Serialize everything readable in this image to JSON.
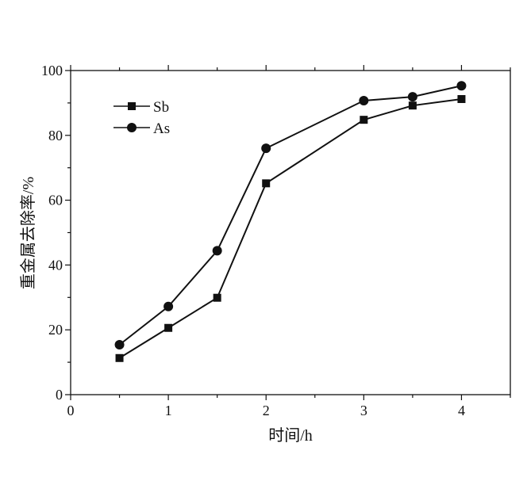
{
  "chart_data": {
    "type": "line",
    "title": "",
    "xlabel": "时间/h",
    "ylabel": "重金属去除率/%",
    "xlim": [
      0,
      4.5
    ],
    "ylim": [
      0,
      100
    ],
    "xticks": [
      0,
      1,
      2,
      3,
      4
    ],
    "xtick_labels": [
      "0",
      "1",
      "2",
      "3",
      "4"
    ],
    "yticks": [
      0,
      20,
      40,
      60,
      80,
      100
    ],
    "ytick_labels": [
      "0",
      "20",
      "40",
      "60",
      "80",
      "100"
    ],
    "grid": false,
    "legend_position": "top-left",
    "x": [
      0.5,
      1,
      1.5,
      2,
      3,
      3.5,
      4
    ],
    "series": [
      {
        "name": "Sb",
        "marker": "square",
        "values": [
          11.3,
          20.6,
          29.9,
          65.2,
          84.8,
          89.2,
          91.2
        ]
      },
      {
        "name": "As",
        "marker": "circle",
        "values": [
          15.4,
          27.2,
          44.4,
          76.0,
          90.7,
          91.9,
          95.3
        ]
      }
    ],
    "color": "#111111"
  }
}
